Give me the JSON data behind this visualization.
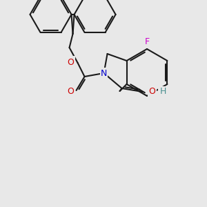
{
  "background_color": "#e8e8e8",
  "bond_color": "#1a1a1a",
  "bond_lw": 1.5,
  "atom_colors": {
    "N": "#0000cc",
    "O": "#cc0000",
    "F": "#cc00cc",
    "H": "#4a9090",
    "C": "#1a1a1a"
  },
  "font_size": 9
}
